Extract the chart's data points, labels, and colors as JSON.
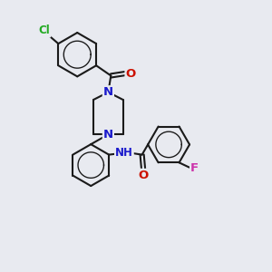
{
  "bg_color": "#e8eaf0",
  "bond_color": "#1a1a1a",
  "bond_width": 1.5,
  "atom_colors": {
    "N": "#1a1acc",
    "O": "#cc1100",
    "Cl": "#22aa22",
    "F": "#cc33aa",
    "H": "#337777"
  },
  "font_size": 9.5
}
